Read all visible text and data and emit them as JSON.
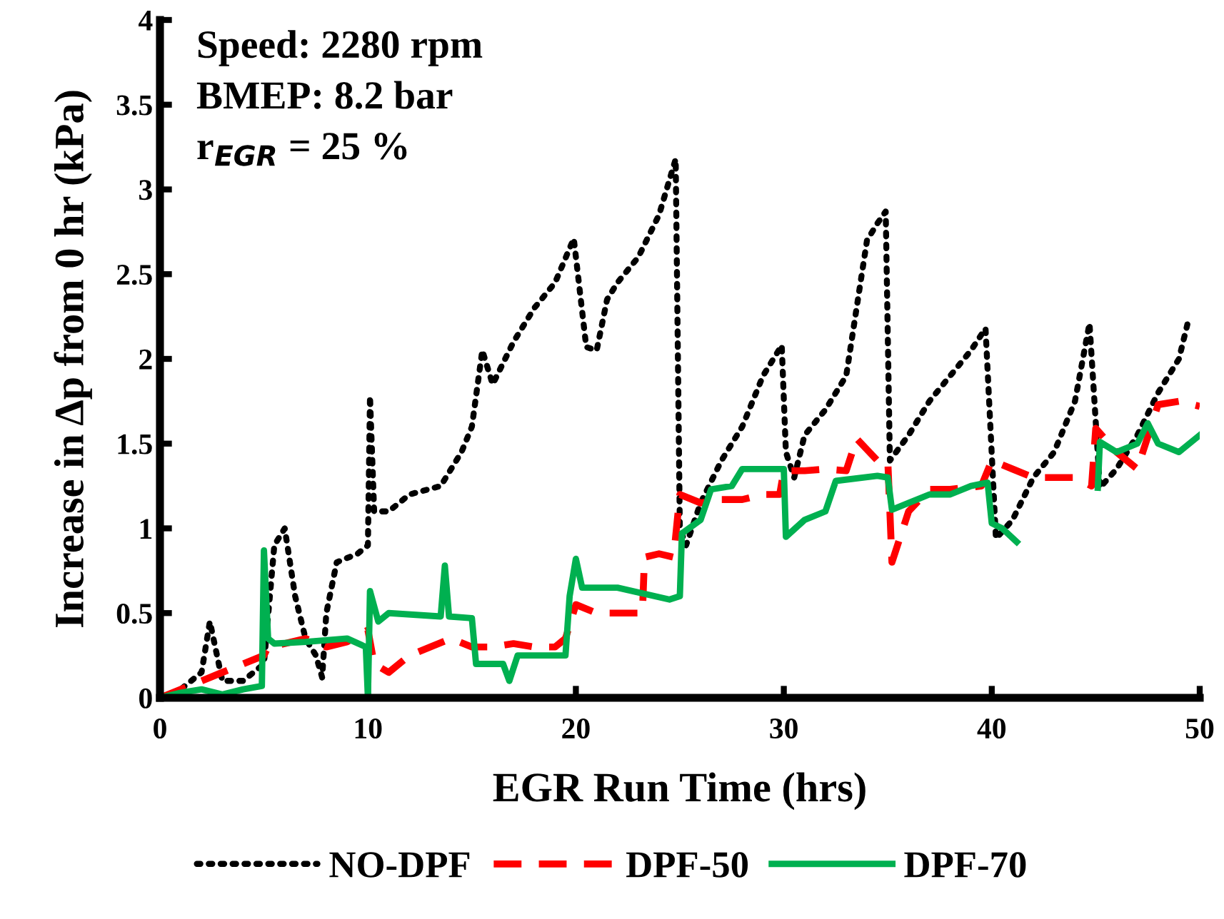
{
  "chart_data": {
    "type": "line",
    "xlabel": "EGR Run Time (hrs)",
    "ylabel": "Increase in Δp from 0 hr (kPa)",
    "annotations": [
      "Speed: 2280 rpm",
      "BMEP: 8.2 bar",
      "r$_{EGR}$ = 25 %"
    ],
    "xlim": [
      0,
      50
    ],
    "xticks": [
      0,
      10,
      20,
      30,
      40,
      50
    ],
    "ylim": [
      0,
      4
    ],
    "yticks": [
      0,
      0.5,
      1,
      1.5,
      2,
      2.5,
      3,
      3.5,
      4
    ],
    "grid": false,
    "legend": "bottom",
    "marker": "none",
    "series": [
      {
        "name": "NO-DPF",
        "color": "#000000",
        "line_style": "dotted",
        "x": [
          0,
          1,
          2,
          2.4,
          3,
          4,
          5,
          5.5,
          6,
          6.5,
          7,
          7.5,
          7.8,
          8,
          8.5,
          9.5,
          10,
          10.1,
          10.3,
          11,
          12,
          13.5,
          14.5,
          15,
          15.5,
          16,
          17,
          18,
          19,
          19.9,
          20.5,
          21,
          21.5,
          22,
          23,
          24,
          24.8,
          25.0,
          25.3,
          26,
          27,
          28,
          29,
          29.9,
          30.1,
          30.5,
          31,
          32,
          33,
          34,
          34.5,
          34.9,
          35.1,
          36,
          37,
          38,
          39,
          39.7,
          40.2,
          41,
          42,
          43,
          44,
          44.7,
          45.2,
          46,
          47,
          48,
          49,
          49.5
        ],
        "values": [
          0,
          0.05,
          0.15,
          0.45,
          0.1,
          0.1,
          0.2,
          0.9,
          1.0,
          0.6,
          0.35,
          0.25,
          0.12,
          0.5,
          0.8,
          0.85,
          0.9,
          1.78,
          1.1,
          1.1,
          1.2,
          1.25,
          1.45,
          1.6,
          2.05,
          1.85,
          2.1,
          2.3,
          2.45,
          2.71,
          2.07,
          2.05,
          2.35,
          2.45,
          2.6,
          2.85,
          3.18,
          1.0,
          0.9,
          1.15,
          1.4,
          1.6,
          1.9,
          2.08,
          1.45,
          1.3,
          1.55,
          1.7,
          1.9,
          2.7,
          2.8,
          2.87,
          1.4,
          1.55,
          1.75,
          1.9,
          2.05,
          2.18,
          0.94,
          1.05,
          1.3,
          1.45,
          1.75,
          2.21,
          1.24,
          1.35,
          1.55,
          1.8,
          2.0,
          2.25
        ]
      },
      {
        "name": "DPF-50",
        "color": "#ff0000",
        "line_style": "dashed",
        "x": [
          0,
          2,
          3,
          4,
          5,
          5.2,
          6,
          7,
          8,
          9,
          10,
          10.3,
          11,
          12,
          13,
          14,
          15,
          16,
          17,
          18,
          19,
          19.5,
          20,
          21,
          22,
          23.2,
          23.3,
          24,
          24.7,
          25,
          26,
          27,
          28,
          29,
          29.8,
          30,
          31,
          32,
          33,
          33.5,
          34.5,
          35,
          35.2,
          36,
          37,
          38,
          39.5,
          40,
          41,
          42,
          43,
          44,
          44.8,
          45,
          46,
          47,
          48,
          49,
          50
        ],
        "values": [
          0,
          0.1,
          0.15,
          0.2,
          0.25,
          0.3,
          0.32,
          0.35,
          0.3,
          0.33,
          0.4,
          0.2,
          0.15,
          0.25,
          0.3,
          0.35,
          0.3,
          0.3,
          0.32,
          0.3,
          0.3,
          0.35,
          0.55,
          0.5,
          0.5,
          0.5,
          0.83,
          0.85,
          0.83,
          1.2,
          1.15,
          1.17,
          1.17,
          1.2,
          1.2,
          1.34,
          1.34,
          1.35,
          1.34,
          1.53,
          1.4,
          1.4,
          0.8,
          1.1,
          1.23,
          1.23,
          1.25,
          1.4,
          1.35,
          1.3,
          1.3,
          1.3,
          1.25,
          1.59,
          1.45,
          1.35,
          1.73,
          1.75,
          1.72
        ]
      },
      {
        "name": "DPF-70",
        "color": "#00b050",
        "line_style": "solid",
        "x": [
          0,
          1,
          2,
          3,
          4,
          4.9,
          5.0,
          5.2,
          5.5,
          7,
          9,
          9.9,
          10.0,
          10.1,
          10.5,
          11,
          13.5,
          13.7,
          13.9,
          15,
          15.2,
          16.5,
          16.8,
          17.2,
          19.5,
          19.7,
          20,
          20.3,
          22,
          24.5,
          25,
          25.1,
          26,
          26.5,
          27.5,
          28,
          30,
          30.1,
          31,
          32,
          32.5,
          34.5,
          35,
          35.2,
          36,
          37,
          38,
          39,
          39.8,
          40,
          40.5,
          41.2,
          43,
          45.1,
          45.2,
          46,
          47,
          47.5,
          48,
          49,
          50
        ],
        "values": [
          0,
          0.03,
          0.05,
          0.02,
          0.05,
          0.07,
          0.87,
          0.35,
          0.32,
          0.33,
          0.35,
          0.3,
          0,
          0.63,
          0.45,
          0.5,
          0.48,
          0.78,
          0.48,
          0.47,
          0.2,
          0.2,
          0.1,
          0.25,
          0.25,
          0.6,
          0.82,
          0.65,
          0.65,
          0.58,
          0.6,
          0.97,
          1.05,
          1.23,
          1.25,
          1.35,
          1.35,
          0.95,
          1.05,
          1.1,
          1.28,
          1.31,
          1.3,
          1.11,
          1.15,
          1.2,
          1.2,
          1.25,
          1.27,
          1.03,
          1.0,
          0.92,
          null,
          1.24,
          1.51,
          1.45,
          1.5,
          1.62,
          1.5,
          1.45,
          1.55
        ]
      }
    ]
  }
}
